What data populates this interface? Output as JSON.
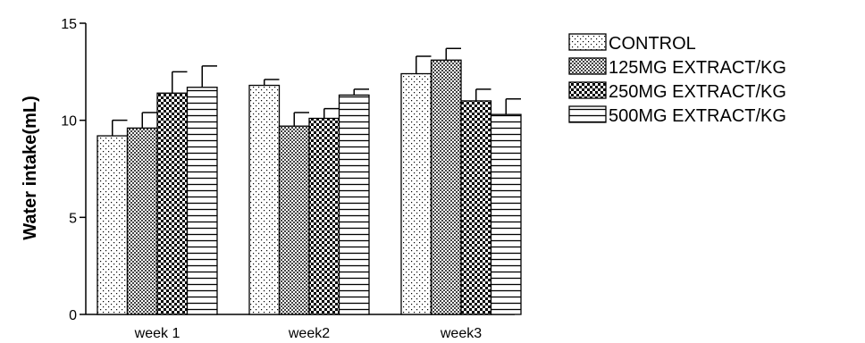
{
  "chart_data": {
    "type": "bar",
    "title": "",
    "xlabel": "",
    "ylabel": "Water intake(mL)",
    "ylim": [
      0,
      15
    ],
    "yticks": [
      0,
      5,
      10,
      15
    ],
    "grid": false,
    "legend_position": "right",
    "categories": [
      "week 1",
      "week2",
      "week3"
    ],
    "series": [
      {
        "name": "CONTROL",
        "pattern": "dots",
        "values": [
          9.2,
          11.8,
          12.4
        ],
        "errors": [
          0.8,
          0.3,
          0.9
        ]
      },
      {
        "name": "125MG EXTRACT/KG",
        "pattern": "dense-dots",
        "values": [
          9.6,
          9.7,
          13.1
        ],
        "errors": [
          0.8,
          0.7,
          0.6
        ]
      },
      {
        "name": "250MG EXTRACT/KG",
        "pattern": "checker",
        "values": [
          11.4,
          10.1,
          11.0
        ],
        "errors": [
          1.1,
          0.5,
          0.6
        ]
      },
      {
        "name": "500MG EXTRACT/KG",
        "pattern": "horizontal-lines",
        "values": [
          11.7,
          11.3,
          10.3
        ],
        "errors": [
          1.1,
          0.3,
          0.8
        ]
      }
    ]
  }
}
